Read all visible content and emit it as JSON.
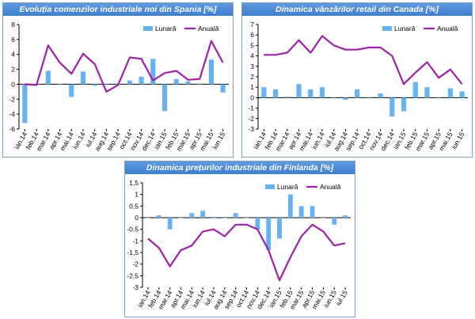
{
  "colors": {
    "bar": "#66b2f2",
    "line": "#a020a8",
    "axis": "#000000",
    "title_bg": "#4a88d6"
  },
  "chart_data": [
    {
      "type": "bar",
      "title": "Evoluția comenzilor industriale noi din Spania [%]",
      "categories": [
        "ian.14",
        "feb.14",
        "mar.14",
        "apr.14",
        "mai.14",
        "iun.14",
        "iul.14",
        "aug.14",
        "sep.14",
        "oct.14",
        "nov.14",
        "dec.14",
        "ian.15",
        "feb.15",
        "mar.15",
        "apr.15",
        "mai.15",
        "iun.15"
      ],
      "x_tick_labels": [
        "ian.14",
        "feb.14",
        "mar.14",
        "apr.14",
        "mai.14",
        "iun.14",
        "iul.14",
        "aug.14",
        "sep.14",
        "oct.14",
        "nov.14",
        "dec.14",
        "ian.15",
        "feb.15",
        "mar.15",
        "apr.15",
        "mai.15",
        "iun.15"
      ],
      "series": [
        {
          "name": "Lunară",
          "type": "bar",
          "values": [
            -5.2,
            0.0,
            1.8,
            0.0,
            -1.7,
            1.7,
            -0.2,
            -0.1,
            0.0,
            0.5,
            1.0,
            3.4,
            -3.6,
            0.7,
            0.4,
            0.1,
            3.3,
            -1.1
          ]
        },
        {
          "name": "Anuală",
          "type": "line",
          "values": [
            0.0,
            -0.1,
            5.2,
            2.9,
            1.4,
            4.1,
            2.7,
            -1.0,
            -0.1,
            3.6,
            3.4,
            0.5,
            1.5,
            1.8,
            0.6,
            0.7,
            5.8,
            2.9
          ]
        }
      ],
      "ylim": [
        -6,
        8
      ],
      "yticks": [
        -6,
        -4,
        -2,
        0,
        2,
        4,
        6,
        8
      ],
      "legend": "top-right",
      "grid": false
    },
    {
      "type": "bar",
      "title": "Dinamica vânzărilor retail din Canada [%]",
      "categories": [
        "ian.14",
        "feb.14",
        "mar.14",
        "apr.14",
        "mai.14",
        "iun.14",
        "iul.14",
        "aug.14",
        "sep.14",
        "oct.14",
        "nov.14",
        "dec.14",
        "ian.15",
        "feb.15",
        "mar.15",
        "apr.15",
        "mai.15",
        "iun.15"
      ],
      "x_tick_labels": [
        "ian.14",
        "feb.14",
        "mar.14",
        "apr.14",
        "mai.14",
        "iun.14",
        "iul.14",
        "aug.14",
        "sep.14",
        "oct.14",
        "nov.14",
        "dec.14",
        "ian.15",
        "feb.15",
        "mar.15",
        "apr.15",
        "mai.15",
        "iun.15"
      ],
      "series": [
        {
          "name": "Lunară",
          "type": "bar",
          "values": [
            1.0,
            0.8,
            0.1,
            1.3,
            0.8,
            1.0,
            0.0,
            -0.2,
            0.8,
            0.0,
            0.4,
            -1.8,
            -1.3,
            1.5,
            1.0,
            0.0,
            0.9,
            0.6
          ]
        },
        {
          "name": "Anuală",
          "type": "line",
          "values": [
            4.1,
            4.1,
            4.3,
            5.5,
            4.3,
            5.9,
            5.0,
            4.6,
            4.6,
            4.8,
            4.8,
            4.0,
            1.3,
            2.4,
            3.4,
            1.9,
            2.7,
            1.3
          ]
        }
      ],
      "ylim": [
        -3,
        7
      ],
      "yticks": [
        -3,
        -2,
        -1,
        0,
        1,
        2,
        3,
        4,
        5,
        6,
        7
      ],
      "legend": "top-right",
      "grid": false
    },
    {
      "type": "bar",
      "title": "Dinamica prețurilor industriale din Finlanda [%]",
      "categories": [
        "ian.14",
        "feb.14",
        "mar.14",
        "apr.14",
        "mai.14",
        "iun.14",
        "iul.14",
        "aug.14",
        "sep.14",
        "oct.14",
        "nov.14",
        "dec.14",
        "ian.15",
        "feb.15",
        "mar.15",
        "apr.15",
        "mai.15",
        "iun.15",
        "iul.15"
      ],
      "x_tick_labels": [
        "ian.14",
        "feb.14",
        "mar.14",
        "apr.14",
        "mai.14",
        "iun.14",
        "iul.14",
        "aug.14",
        "sep.14",
        "oct.14",
        "nov.14",
        "dec.14",
        "ian.15",
        "feb.15",
        "mar.15",
        "apr.15",
        "mai.15",
        "iun.15",
        "iul.15"
      ],
      "series": [
        {
          "name": "Lunară",
          "type": "bar",
          "values": [
            0.0,
            0.1,
            -0.5,
            0.0,
            0.2,
            0.3,
            0.0,
            0.0,
            0.2,
            0.0,
            -0.5,
            -1.4,
            -0.9,
            1.0,
            0.5,
            0.5,
            0.0,
            -0.3,
            0.1
          ]
        },
        {
          "name": "Anuală",
          "type": "line",
          "values": [
            -0.9,
            -1.3,
            -2.1,
            -1.4,
            -1.2,
            -0.6,
            -0.5,
            -0.8,
            -0.3,
            -0.3,
            -0.5,
            -1.4,
            -2.7,
            -1.7,
            -0.8,
            -0.3,
            -0.6,
            -1.2,
            -1.1
          ]
        }
      ],
      "ylim": [
        -3,
        1.5
      ],
      "yticks": [
        -3,
        -2.5,
        -2,
        -1.5,
        -1,
        -0.5,
        0,
        0.5,
        1,
        1.5
      ],
      "legend": "top-right",
      "grid": false
    }
  ]
}
